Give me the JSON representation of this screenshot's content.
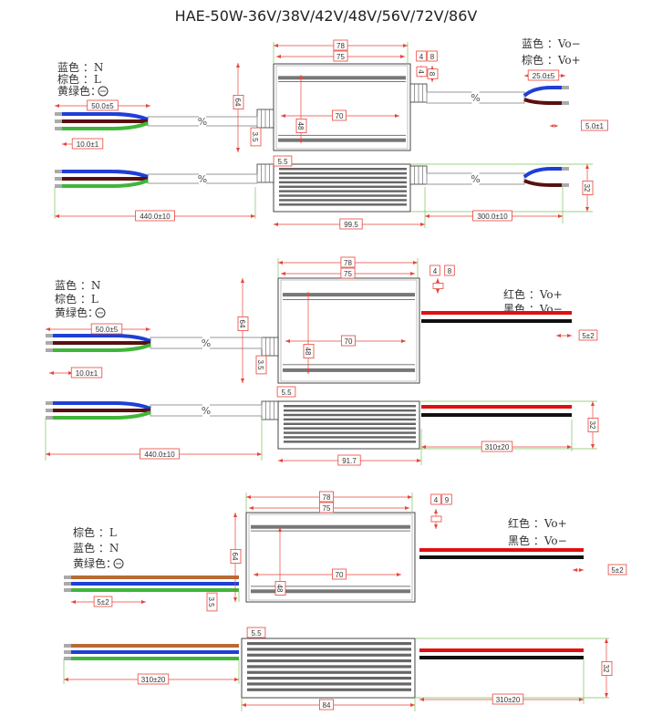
{
  "title": "HAE-50W-36V/38V/42V/48V/56V/72V/86V",
  "colors": {
    "dimension": "#e8453c",
    "extension": "#7cc35a",
    "blue": "#1f3fd6",
    "brown": "#5a1010",
    "green": "#3fb63a",
    "yellow": "#d9d21a",
    "red": "#e01010",
    "black": "#111111",
    "cable": "#9a9a9a",
    "lightBrown": "#b86a35"
  },
  "diagrams": [
    {
      "legend_left": [
        "蓝色 ：N",
        "棕色 ：L",
        "黄绿色："
      ],
      "legend_right": [
        "蓝色 ：Vo−",
        "棕色 ：Vo+"
      ],
      "dims": {
        "w78": "78",
        "w75": "75",
        "h4": "4",
        "h8": "8",
        "d64": "64",
        "d48": "48",
        "d70": "70",
        "d35": "3.5",
        "d55": "5.5",
        "strip_in": "50.0±5",
        "tip_in": "10.0±1",
        "strip_out": "25.0±5",
        "tip_out": "5.0±1",
        "h32": "32",
        "len_in": "440.0±10",
        "body": "99.5",
        "len_out": "300.0±10"
      }
    },
    {
      "legend_left": [
        "蓝色 ：N",
        "棕色 ：L",
        "黄绿色："
      ],
      "legend_right": [
        "红色 ：Vo+",
        "黑色 ：Vo−"
      ],
      "dims": {
        "w78": "78",
        "w75": "75",
        "h4": "4",
        "h8": "8",
        "d64": "64",
        "d48": "48",
        "d70": "70",
        "d35": "3.5",
        "d55": "5.5",
        "strip_in": "50.0±5",
        "tip_in": "10.0±1",
        "tip_out": "5±2",
        "h32": "32",
        "len_in": "440.0±10",
        "body": "91.7",
        "len_out": "310±20"
      }
    },
    {
      "legend_left": [
        "棕色 ：L",
        "蓝色 ：N",
        "黄绿色："
      ],
      "legend_right": [
        "红色 ：Vo+",
        "黑色 ：Vo−"
      ],
      "dims": {
        "w78": "78",
        "w75": "75",
        "h4": "4",
        "h8": "9",
        "d64": "64",
        "d48": "48",
        "d70": "70",
        "d35": "3.5",
        "d55": "5.5",
        "tip_in": "5±2",
        "tip_out": "5±2",
        "h32": "32",
        "len_in": "310±20",
        "body": "84",
        "len_out": "310±20"
      }
    }
  ]
}
